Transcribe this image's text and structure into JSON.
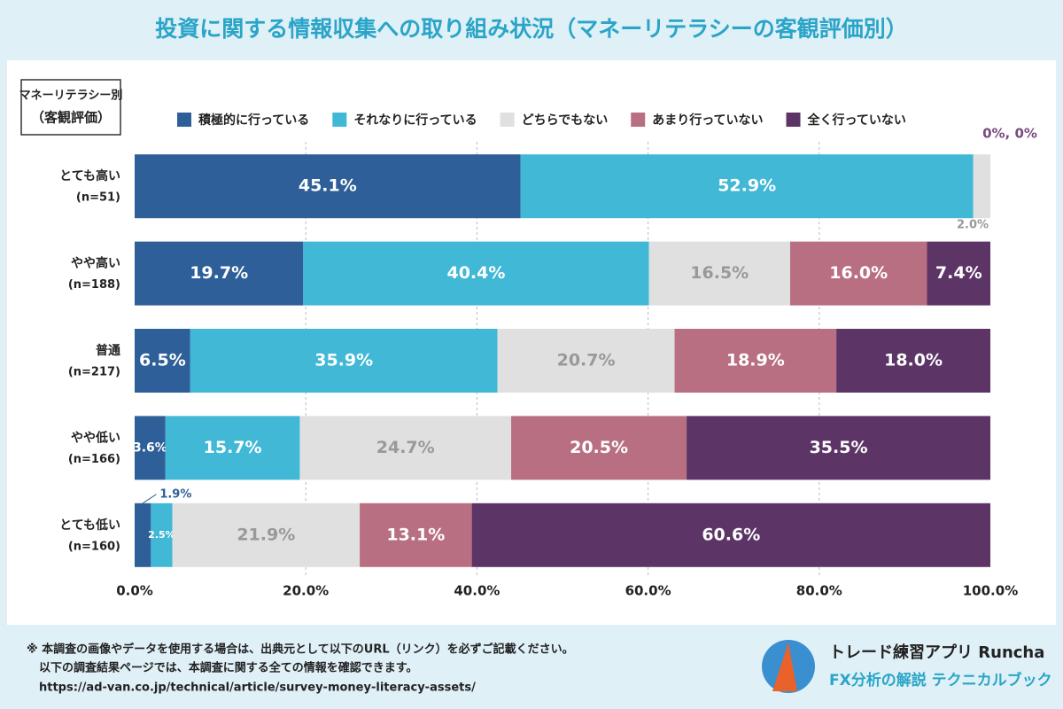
{
  "chart_data": {
    "type": "stacked_bar_horizontal",
    "title": "投資に関する情報収集への取り組み状況（マネーリテラシーの客観評価別）",
    "axis_label": [
      "マネーリテラシー別",
      "（客観評価）"
    ],
    "categories": [
      "とても高い",
      "やや高い",
      "普通",
      "やや低い",
      "とても低い"
    ],
    "sample_sizes": [
      "(n=51)",
      "(n=188)",
      "(n=217)",
      "(n=166)",
      "(n=160)"
    ],
    "series": [
      {
        "name": "積極的に行っている",
        "color": "#2e5f98",
        "values": [
          45.1,
          19.7,
          6.5,
          3.6,
          1.9
        ],
        "value_labels": [
          "45.1%",
          "19.7%",
          "6.5%",
          "3.6%",
          "1.9%"
        ]
      },
      {
        "name": "それなりに行っている",
        "color": "#40b8d6",
        "values": [
          52.9,
          40.4,
          35.9,
          15.7,
          2.5
        ],
        "value_labels": [
          "52.9%",
          "40.4%",
          "35.9%",
          "15.7%",
          "2.5%"
        ]
      },
      {
        "name": "どちらでもない",
        "color": "#e0e0e0",
        "values": [
          2.0,
          16.5,
          20.7,
          24.7,
          21.9
        ],
        "value_labels": [
          "2.0%",
          "16.5%",
          "20.7%",
          "24.7%",
          "21.9%"
        ]
      },
      {
        "name": "あまり行っていない",
        "color": "#b96f82",
        "values": [
          0,
          16.0,
          18.9,
          20.5,
          13.1
        ],
        "value_labels": [
          null,
          "16.0%",
          "18.9%",
          "20.5%",
          "13.1%"
        ]
      },
      {
        "name": "全く行っていない",
        "color": "#5c3566",
        "values": [
          0,
          7.4,
          18.0,
          35.5,
          60.6
        ],
        "value_labels": [
          null,
          "7.4%",
          "18.0%",
          "35.5%",
          "60.6%"
        ]
      }
    ],
    "zero_annotation": "0%, 0%",
    "xlim": [
      0,
      100
    ],
    "xticks": [
      {
        "value": 0,
        "label": "0.0%"
      },
      {
        "value": 20,
        "label": "20.0%"
      },
      {
        "value": 40,
        "label": "40.0%"
      },
      {
        "value": 60,
        "label": "60.0%"
      },
      {
        "value": 80,
        "label": "80.0%"
      },
      {
        "value": 100,
        "label": "100.0%"
      }
    ],
    "grid": true
  },
  "footer": {
    "notes": [
      "※ 本調査の画像やデータを使用する場合は、出典元として以下のURL（リンク）を必ずご記載ください。",
      "以下の調査結果ページでは、本調査に関する全ての情報を確認できます。",
      "https://ad-van.co.jp/technical/article/survey-money-literacy-assets/"
    ],
    "brand": "トレード練習アプリ Runcha",
    "tagline": "FX分析の解説 テクニカルブック"
  }
}
